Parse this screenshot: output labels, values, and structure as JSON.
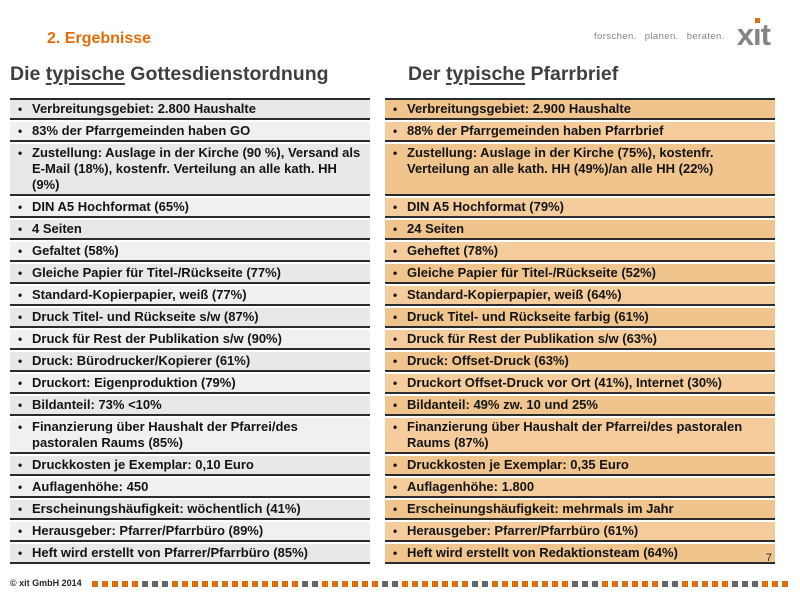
{
  "slide": {
    "title": "2. Ergebnisse",
    "tagline": "forschen. planen. beraten.",
    "logo": {
      "name": "xit",
      "l1": "x",
      "l2": "ı",
      "l3": "t"
    }
  },
  "column_headers": {
    "left": {
      "pre": "Die ",
      "em": "typische",
      "post": " Gottesdienstordnung"
    },
    "right": {
      "pre": "Der ",
      "em": "typische",
      "post": " Pfarrbrief"
    }
  },
  "table": {
    "bullet": "•",
    "rows": [
      {
        "left": "Verbreitungsgebiet: 2.800 Haushalte",
        "right": "Verbreitungsgebiet: 2.900 Haushalte"
      },
      {
        "left": "83% der Pfarrgemeinden haben GO",
        "right": "88% der Pfarrgemeinden haben Pfarrbrief"
      },
      {
        "left": "Zustellung: Auslage in der Kirche (90 %), Versand als E-Mail (18%), kostenfr. Verteilung an alle kath. HH (9%)",
        "right": "Zustellung: Auslage in der Kirche (75%), kostenfr. Verteilung an alle kath. HH (49%)/an alle HH (22%)"
      },
      {
        "left": "DIN A5 Hochformat (65%)",
        "right": "DIN A5 Hochformat (79%)"
      },
      {
        "left": "4 Seiten",
        "right": "24 Seiten"
      },
      {
        "left": "Gefaltet (58%)",
        "right": "Geheftet (78%)"
      },
      {
        "left": "Gleiche Papier für Titel-/Rückseite (77%)",
        "right": "Gleiche Papier für Titel-/Rückseite (52%)"
      },
      {
        "left": "Standard-Kopierpapier, weiß (77%)",
        "right": "Standard-Kopierpapier, weiß (64%)"
      },
      {
        "left": "Druck Titel- und Rückseite s/w (87%)",
        "right": "Druck Titel- und Rückseite farbig (61%)"
      },
      {
        "left": "Druck für Rest der Publikation s/w (90%)",
        "right": "Druck für Rest der Publikation s/w (63%)"
      },
      {
        "left": "Druck: Bürodrucker/Kopierer (61%)",
        "right": "Druck: Offset-Druck (63%)"
      },
      {
        "left": "Druckort: Eigenproduktion (79%)",
        "right": "Druckort Offset-Druck vor Ort (41%), Internet (30%)"
      },
      {
        "left": "Bildanteil: 73% <10%",
        "right": "Bildanteil: 49% zw. 10 und 25%"
      },
      {
        "left": "Finanzierung über Haushalt der Pfarrei/des pastoralen Raums (85%)",
        "right": "Finanzierung über Haushalt der Pfarrei/des pastoralen Raums (87%)"
      },
      {
        "left": "Druckkosten je Exemplar: 0,10 Euro",
        "right": "Druckkosten je Exemplar: 0,35 Euro"
      },
      {
        "left": "Auflagenhöhe: 450",
        "right": "Auflagenhöhe: 1.800"
      },
      {
        "left": "Erscheinungshäufigkeit: wöchentlich (41%)",
        "right": "Erscheinungshäufigkeit: mehrmals im Jahr"
      },
      {
        "left": "Herausgeber: Pfarrer/Pfarrbüro (89%)",
        "right": "Herausgeber: Pfarrer/Pfarrbüro (61%)"
      },
      {
        "left": "Heft wird erstellt von Pfarrer/Pfarrbüro (85%)",
        "right": "Heft wird erstellt von Redaktionsteam (64%)"
      }
    ]
  },
  "footer": {
    "copyright": "© xit GmbH 2014",
    "page_number": "7",
    "dash_pattern": "oooooggsoooooooooooooggooooooggoooooooggoooooooogggooooooggooooogggooo"
  },
  "colors": {
    "accent-orange": "#e36c0a",
    "brand-gray": "#858585",
    "dash-gray": "#666666",
    "cell-gray": "#e8e8e8",
    "cell-gray-alt": "#f0f0f0",
    "cell-tan": "#f0c48d",
    "cell-tan-alt": "#f5cd9d",
    "border-dark": "#2b2b2b",
    "header-text": "#3f3f3f",
    "body-text": "#141414",
    "footer-text": "#262626"
  }
}
